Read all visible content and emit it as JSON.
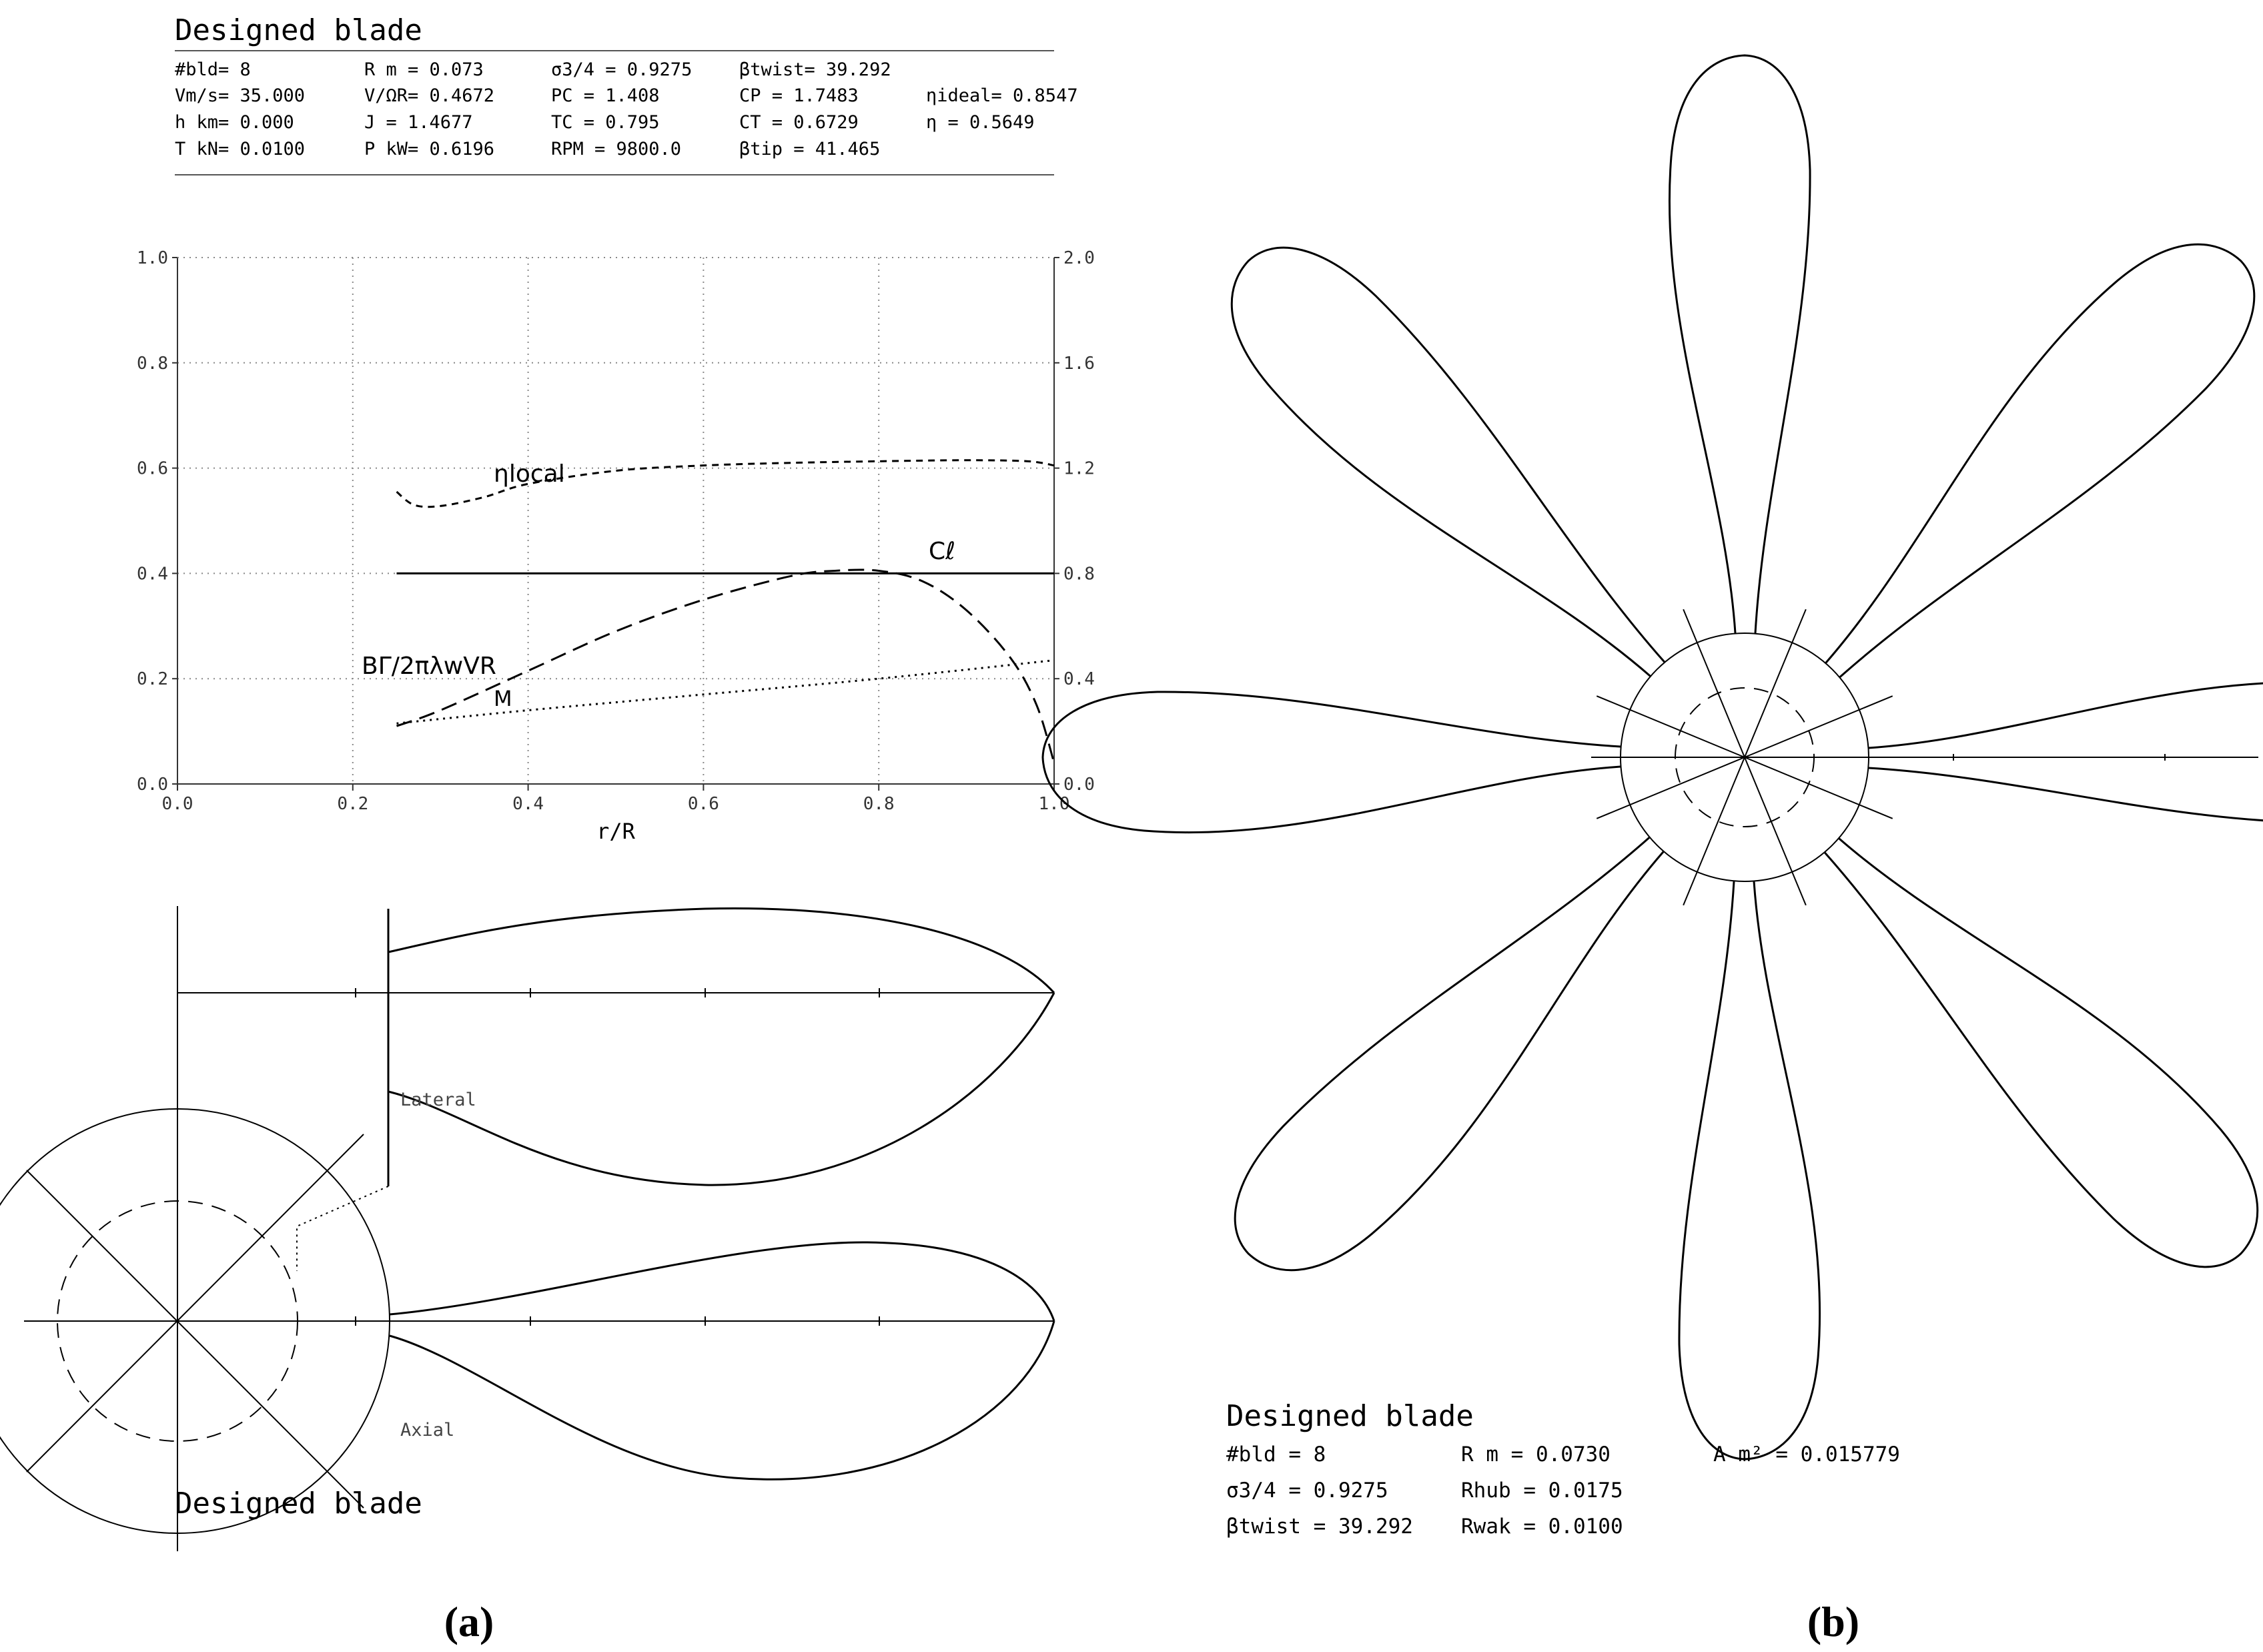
{
  "panel_a": {
    "title": "Designed blade",
    "params": [
      [
        "#bld= 8",
        "R m = 0.073",
        "σ3/4 = 0.9275",
        "βtwist= 39.292",
        ""
      ],
      [
        "Vm/s= 35.000",
        "V/ΩR= 0.4672",
        "PC = 1.408",
        "CP = 1.7483",
        "ηideal= 0.8547"
      ],
      [
        "h km= 0.000",
        "J = 1.4677",
        "TC = 0.795",
        "CT = 0.6729",
        "η = 0.5649"
      ],
      [
        "T kN= 0.0100",
        "P kW= 0.6196",
        "RPM = 9800.0",
        "βtip = 41.465",
        ""
      ]
    ],
    "label_eta_local": "ηlocal",
    "label_cl": "Cℓ",
    "label_circ": "BΓ/2πλwVR",
    "label_mach": "M",
    "label_lateral": "Lateral",
    "label_axial": "Axial",
    "bottom_title": "Designed blade",
    "caption": "(a)"
  },
  "panel_b": {
    "title": "Designed blade",
    "params": [
      [
        "#bld = 8",
        "R m = 0.0730",
        "A m² = 0.015779"
      ],
      [
        "σ3/4 = 0.9275",
        "Rhub = 0.0175",
        ""
      ],
      [
        "βtwist = 39.292",
        "Rwak = 0.0100",
        ""
      ]
    ],
    "caption": "(b)"
  },
  "chart_data": {
    "type": "line",
    "xlabel": "r/R",
    "xlim": [
      0.0,
      1.0
    ],
    "ylim_left": [
      0.0,
      1.0
    ],
    "ylim_right": [
      0.0,
      2.0
    ],
    "x_ticks": [
      "0.0",
      "0.2",
      "0.4",
      "0.6",
      "0.8",
      "1.0"
    ],
    "y_ticks_left": [
      "0.0",
      "0.2",
      "0.4",
      "0.6",
      "0.8",
      "1.0"
    ],
    "y_ticks_right": [
      "0.0",
      "0.4",
      "0.8",
      "1.2",
      "1.6",
      "2.0"
    ],
    "grid": true,
    "series": [
      {
        "name": "ηlocal",
        "style": "short-dash",
        "x": [
          0.25,
          0.27,
          0.3,
          0.35,
          0.4,
          0.5,
          0.6,
          0.7,
          0.8,
          0.9,
          0.97,
          1.0
        ],
        "y": [
          0.555,
          0.53,
          0.528,
          0.545,
          0.57,
          0.595,
          0.605,
          0.61,
          0.613,
          0.615,
          0.613,
          0.605
        ]
      },
      {
        "name": "Cℓ",
        "style": "solid",
        "x": [
          0.25,
          1.0
        ],
        "y": [
          0.4,
          0.4
        ]
      },
      {
        "name": "BΓ/2πλwVR",
        "style": "long-dash",
        "x": [
          0.25,
          0.3,
          0.4,
          0.5,
          0.6,
          0.7,
          0.75,
          0.8,
          0.85,
          0.9,
          0.95,
          0.98,
          1.0
        ],
        "y": [
          0.11,
          0.14,
          0.215,
          0.29,
          0.35,
          0.395,
          0.405,
          0.405,
          0.385,
          0.33,
          0.24,
          0.15,
          0.04
        ]
      },
      {
        "name": "M",
        "style": "dotted",
        "x": [
          0.25,
          0.4,
          0.6,
          0.8,
          1.0
        ],
        "y": [
          0.115,
          0.14,
          0.17,
          0.2,
          0.235
        ]
      }
    ]
  }
}
